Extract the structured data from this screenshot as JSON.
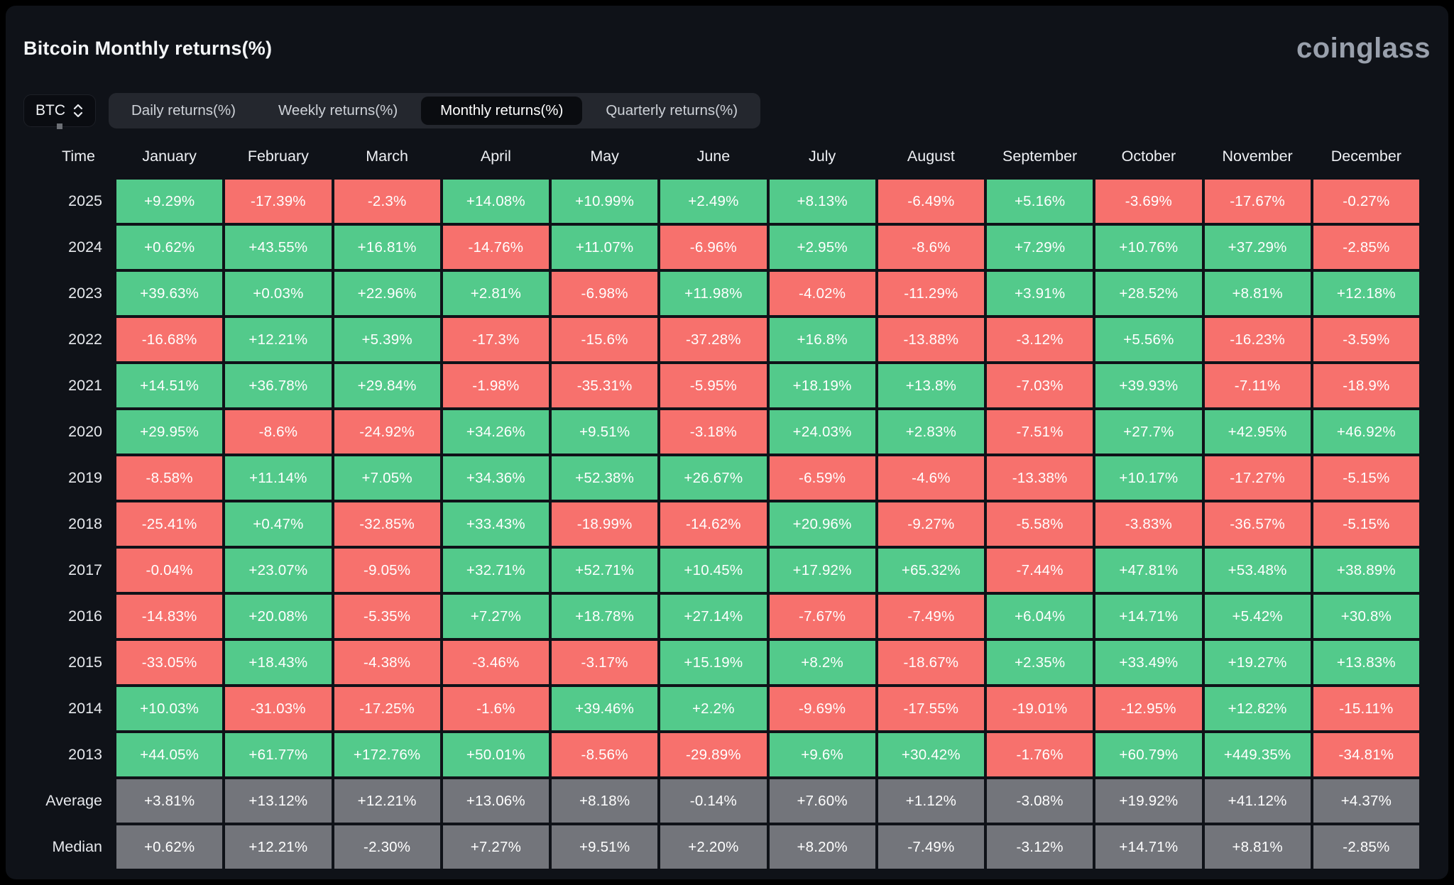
{
  "page": {
    "title": "Bitcoin Monthly returns(%)",
    "brand": "coinglass"
  },
  "controls": {
    "symbol_select": {
      "value": "BTC"
    },
    "tabs": [
      {
        "label": "Daily returns(%)",
        "active": false
      },
      {
        "label": "Weekly returns(%)",
        "active": false
      },
      {
        "label": "Monthly returns(%)",
        "active": true
      },
      {
        "label": "Quarterly returns(%)",
        "active": false
      }
    ]
  },
  "colors": {
    "positive": "#53ca8b",
    "negative": "#f7716d",
    "neutral": "#73757b"
  },
  "chart_data": {
    "type": "heatmap",
    "title": "Bitcoin Monthly returns(%)",
    "columns": [
      "Time",
      "January",
      "February",
      "March",
      "April",
      "May",
      "June",
      "July",
      "August",
      "September",
      "October",
      "November",
      "December"
    ],
    "rows": [
      {
        "label": "2025",
        "type": "year",
        "values": [
          "+9.29%",
          "-17.39%",
          "-2.3%",
          "+14.08%",
          "+10.99%",
          "+2.49%",
          "+8.13%",
          "-6.49%",
          "+5.16%",
          "-3.69%",
          "-17.67%",
          "-0.27%"
        ]
      },
      {
        "label": "2024",
        "type": "year",
        "values": [
          "+0.62%",
          "+43.55%",
          "+16.81%",
          "-14.76%",
          "+11.07%",
          "-6.96%",
          "+2.95%",
          "-8.6%",
          "+7.29%",
          "+10.76%",
          "+37.29%",
          "-2.85%"
        ]
      },
      {
        "label": "2023",
        "type": "year",
        "values": [
          "+39.63%",
          "+0.03%",
          "+22.96%",
          "+2.81%",
          "-6.98%",
          "+11.98%",
          "-4.02%",
          "-11.29%",
          "+3.91%",
          "+28.52%",
          "+8.81%",
          "+12.18%"
        ]
      },
      {
        "label": "2022",
        "type": "year",
        "values": [
          "-16.68%",
          "+12.21%",
          "+5.39%",
          "-17.3%",
          "-15.6%",
          "-37.28%",
          "+16.8%",
          "-13.88%",
          "-3.12%",
          "+5.56%",
          "-16.23%",
          "-3.59%"
        ]
      },
      {
        "label": "2021",
        "type": "year",
        "values": [
          "+14.51%",
          "+36.78%",
          "+29.84%",
          "-1.98%",
          "-35.31%",
          "-5.95%",
          "+18.19%",
          "+13.8%",
          "-7.03%",
          "+39.93%",
          "-7.11%",
          "-18.9%"
        ]
      },
      {
        "label": "2020",
        "type": "year",
        "values": [
          "+29.95%",
          "-8.6%",
          "-24.92%",
          "+34.26%",
          "+9.51%",
          "-3.18%",
          "+24.03%",
          "+2.83%",
          "-7.51%",
          "+27.7%",
          "+42.95%",
          "+46.92%"
        ]
      },
      {
        "label": "2019",
        "type": "year",
        "values": [
          "-8.58%",
          "+11.14%",
          "+7.05%",
          "+34.36%",
          "+52.38%",
          "+26.67%",
          "-6.59%",
          "-4.6%",
          "-13.38%",
          "+10.17%",
          "-17.27%",
          "-5.15%"
        ]
      },
      {
        "label": "2018",
        "type": "year",
        "values": [
          "-25.41%",
          "+0.47%",
          "-32.85%",
          "+33.43%",
          "-18.99%",
          "-14.62%",
          "+20.96%",
          "-9.27%",
          "-5.58%",
          "-3.83%",
          "-36.57%",
          "-5.15%"
        ]
      },
      {
        "label": "2017",
        "type": "year",
        "values": [
          "-0.04%",
          "+23.07%",
          "-9.05%",
          "+32.71%",
          "+52.71%",
          "+10.45%",
          "+17.92%",
          "+65.32%",
          "-7.44%",
          "+47.81%",
          "+53.48%",
          "+38.89%"
        ]
      },
      {
        "label": "2016",
        "type": "year",
        "values": [
          "-14.83%",
          "+20.08%",
          "-5.35%",
          "+7.27%",
          "+18.78%",
          "+27.14%",
          "-7.67%",
          "-7.49%",
          "+6.04%",
          "+14.71%",
          "+5.42%",
          "+30.8%"
        ]
      },
      {
        "label": "2015",
        "type": "year",
        "values": [
          "-33.05%",
          "+18.43%",
          "-4.38%",
          "-3.46%",
          "-3.17%",
          "+15.19%",
          "+8.2%",
          "-18.67%",
          "+2.35%",
          "+33.49%",
          "+19.27%",
          "+13.83%"
        ]
      },
      {
        "label": "2014",
        "type": "year",
        "values": [
          "+10.03%",
          "-31.03%",
          "-17.25%",
          "-1.6%",
          "+39.46%",
          "+2.2%",
          "-9.69%",
          "-17.55%",
          "-19.01%",
          "-12.95%",
          "+12.82%",
          "-15.11%"
        ]
      },
      {
        "label": "2013",
        "type": "year",
        "values": [
          "+44.05%",
          "+61.77%",
          "+172.76%",
          "+50.01%",
          "-8.56%",
          "-29.89%",
          "+9.6%",
          "+30.42%",
          "-1.76%",
          "+60.79%",
          "+449.35%",
          "-34.81%"
        ]
      },
      {
        "label": "Average",
        "type": "summary",
        "values": [
          "+3.81%",
          "+13.12%",
          "+12.21%",
          "+13.06%",
          "+8.18%",
          "-0.14%",
          "+7.60%",
          "+1.12%",
          "-3.08%",
          "+19.92%",
          "+41.12%",
          "+4.37%"
        ]
      },
      {
        "label": "Median",
        "type": "summary",
        "values": [
          "+0.62%",
          "+12.21%",
          "-2.30%",
          "+7.27%",
          "+9.51%",
          "+2.20%",
          "+8.20%",
          "-7.49%",
          "-3.12%",
          "+14.71%",
          "+8.81%",
          "-2.85%"
        ]
      }
    ]
  }
}
